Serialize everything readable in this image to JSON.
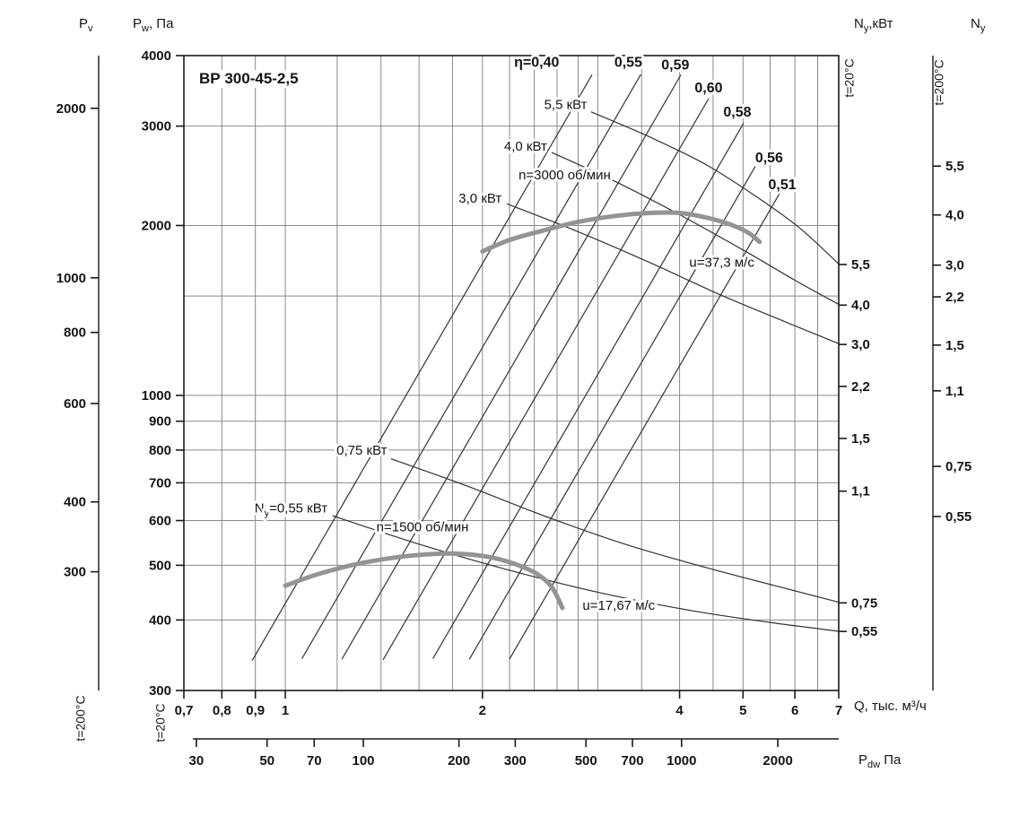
{
  "chart_data": {
    "type": "line",
    "title": "ВР 300-45-2,5",
    "axis_titles": {
      "pv": {
        "main": "P",
        "sub": "v",
        "rest": ""
      },
      "pw": {
        "main": "P",
        "sub": "w",
        "rest": ", Па"
      },
      "ny20": {
        "main": "N",
        "sub": "y",
        "rest": ",кВт"
      },
      "ny200": {
        "main": "N",
        "sub": "y",
        "rest": ""
      },
      "q": {
        "main": "Q",
        "sub": "",
        "rest": ", тыс. м³/ч"
      },
      "pdw": {
        "main": "P",
        "sub": "dw",
        "rest": " Па"
      }
    },
    "temps": {
      "left_outer": "t=200°C",
      "left_inner": "t=20°C",
      "right_inner": "t=20°C",
      "right_outer": "t=200°C"
    },
    "x_axis": {
      "scale": "log",
      "min": 0.7,
      "max": 7,
      "ticks": [
        {
          "v": 0.7,
          "l": "0,7"
        },
        {
          "v": 0.8,
          "l": "0,8"
        },
        {
          "v": 0.9,
          "l": "0,9"
        },
        {
          "v": 1,
          "l": "1"
        },
        {
          "v": 2,
          "l": "2"
        },
        {
          "v": 4,
          "l": "4"
        },
        {
          "v": 5,
          "l": "5"
        },
        {
          "v": 6,
          "l": "6"
        },
        {
          "v": 7,
          "l": "7"
        }
      ],
      "grid": [
        0.7,
        0.8,
        0.9,
        1,
        1.2,
        1.4,
        1.6,
        1.8,
        2,
        2.2,
        2.4,
        2.6,
        2.8,
        3,
        3.5,
        4,
        4.5,
        5,
        5.5,
        6,
        6.5,
        7
      ]
    },
    "y_axis": {
      "scale": "log",
      "min": 300,
      "max": 4000,
      "ticks": [
        {
          "v": 4000,
          "l": "4000"
        },
        {
          "v": 3000,
          "l": "3000"
        },
        {
          "v": 2000,
          "l": "2000"
        },
        {
          "v": 1000,
          "l": "1000"
        },
        {
          "v": 900,
          "l": "900"
        },
        {
          "v": 800,
          "l": "800"
        },
        {
          "v": 700,
          "l": "700"
        },
        {
          "v": 600,
          "l": "600"
        },
        {
          "v": 500,
          "l": "500"
        },
        {
          "v": 400,
          "l": "400"
        },
        {
          "v": 300,
          "l": "300"
        }
      ],
      "grid": [
        300,
        400,
        500,
        600,
        700,
        800,
        900,
        1000,
        1500,
        2000,
        3000,
        4000
      ]
    },
    "pv_axis": {
      "ticks": [
        {
          "l": "2000",
          "f": 0.083
        },
        {
          "l": "1000",
          "f": 0.35
        },
        {
          "l": "800",
          "f": 0.436
        },
        {
          "l": "600",
          "f": 0.548
        },
        {
          "l": "400",
          "f": 0.703
        },
        {
          "l": "300",
          "f": 0.813
        }
      ]
    },
    "pdw_axis": {
      "ticks": [
        {
          "l": "30",
          "f": 0.019
        },
        {
          "l": "50",
          "f": 0.127
        },
        {
          "l": "70",
          "f": 0.199
        },
        {
          "l": "100",
          "f": 0.274
        },
        {
          "l": "200",
          "f": 0.42
        },
        {
          "l": "300",
          "f": 0.506
        },
        {
          "l": "500",
          "f": 0.614
        },
        {
          "l": "700",
          "f": 0.685
        },
        {
          "l": "1000",
          "f": 0.76
        },
        {
          "l": "2000",
          "f": 0.907
        }
      ]
    },
    "ny20_axis": {
      "ticks": [
        {
          "l": "5,5",
          "f": 0.329
        },
        {
          "l": "4,0",
          "f": 0.393
        },
        {
          "l": "3,0",
          "f": 0.455
        },
        {
          "l": "2,2",
          "f": 0.521
        },
        {
          "l": "1,5",
          "f": 0.603
        },
        {
          "l": "1,1",
          "f": 0.686
        },
        {
          "l": "0,75",
          "f": 0.862
        },
        {
          "l": "0,55",
          "f": 0.907
        }
      ]
    },
    "ny200_axis": {
      "ticks": [
        {
          "l": "5,5",
          "f": 0.174
        },
        {
          "l": "4,0",
          "f": 0.251
        },
        {
          "l": "3,0",
          "f": 0.33
        },
        {
          "l": "2,2",
          "f": 0.38
        },
        {
          "l": "1,5",
          "f": 0.456
        },
        {
          "l": "1,1",
          "f": 0.528
        },
        {
          "l": "0,75",
          "f": 0.647
        },
        {
          "l": "0,55",
          "f": 0.726
        }
      ]
    },
    "fan_curves": [
      {
        "name": "n3000",
        "label": "n=3000 об/мин",
        "label_q": 2.67,
        "label_p": 2415,
        "u_label": "u=37,3 м/с",
        "u_q": 4.64,
        "u_p": 1690,
        "points": [
          [
            2.0,
            1800
          ],
          [
            2.2,
            1885
          ],
          [
            2.5,
            1965
          ],
          [
            2.8,
            2030
          ],
          [
            3.2,
            2080
          ],
          [
            3.6,
            2105
          ],
          [
            4.0,
            2105
          ],
          [
            4.4,
            2065
          ],
          [
            4.8,
            2005
          ],
          [
            5.1,
            1940
          ],
          [
            5.3,
            1870
          ]
        ]
      },
      {
        "name": "n1500",
        "label": "n=1500 об/мин",
        "label_q": 1.62,
        "label_p": 574,
        "u_label": "u=17,67 м/с",
        "u_q": 3.23,
        "u_p": 417,
        "points": [
          [
            1.0,
            460
          ],
          [
            1.12,
            482
          ],
          [
            1.28,
            502
          ],
          [
            1.45,
            515
          ],
          [
            1.65,
            523
          ],
          [
            1.85,
            524
          ],
          [
            2.05,
            517
          ],
          [
            2.25,
            502
          ],
          [
            2.42,
            483
          ],
          [
            2.55,
            458
          ],
          [
            2.65,
            420
          ]
        ]
      }
    ],
    "efficiency_lines": [
      {
        "label": "η=0,40",
        "k": 428,
        "q1": 0.89,
        "q2": 2.94,
        "lq": 2.42,
        "lp": 3820
      },
      {
        "label": "0,55",
        "k": 304,
        "q1": 1.06,
        "q2": 3.49,
        "lq": 3.34,
        "lp": 3820
      },
      {
        "label": "0,59",
        "k": 229,
        "q1": 1.22,
        "q2": 4.02,
        "lq": 3.94,
        "lp": 3780
      },
      {
        "label": "0,60",
        "k": 171,
        "q1": 1.41,
        "q2": 4.43,
        "lq": 4.43,
        "lp": 3440
      },
      {
        "label": "0,58",
        "k": 121,
        "q1": 1.68,
        "q2": 5.01,
        "lq": 4.9,
        "lp": 3120
      },
      {
        "label": "0,56",
        "k": 93.4,
        "q1": 1.91,
        "q2": 5.22,
        "lq": 5.48,
        "lp": 2590
      },
      {
        "label": "0,51",
        "k": 70.5,
        "q1": 2.2,
        "q2": 5.69,
        "lq": 5.74,
        "lp": 2320
      }
    ],
    "power_curves": [
      {
        "label_parts": [
          {
            "t": "5,5 кВт"
          }
        ],
        "anchor": "end",
        "label_q": 2.89,
        "label_p": 3220,
        "points": [
          [
            2.93,
            3180
          ],
          [
            3.6,
            2870
          ],
          [
            4.4,
            2560
          ],
          [
            5.3,
            2230
          ],
          [
            6.1,
            1980
          ],
          [
            7,
            1710
          ]
        ]
      },
      {
        "label_parts": [
          {
            "t": "4,0 кВт"
          }
        ],
        "anchor": "end",
        "label_q": 2.51,
        "label_p": 2715,
        "points": [
          [
            2.55,
            2695
          ],
          [
            3.2,
            2390
          ],
          [
            4.0,
            2090
          ],
          [
            5.0,
            1810
          ],
          [
            6.0,
            1600
          ],
          [
            7,
            1450
          ]
        ]
      },
      {
        "label_parts": [
          {
            "t": "3,0 кВт"
          }
        ],
        "anchor": "end",
        "label_q": 2.14,
        "label_p": 2195,
        "points": [
          [
            2.18,
            2185
          ],
          [
            2.8,
            1950
          ],
          [
            3.6,
            1720
          ],
          [
            4.6,
            1510
          ],
          [
            5.8,
            1350
          ],
          [
            7,
            1235
          ]
        ]
      },
      {
        "label_parts": [
          {
            "t": "0,75 кВт"
          }
        ],
        "anchor": "end",
        "label_q": 1.43,
        "label_p": 785,
        "points": [
          [
            1.45,
            772
          ],
          [
            1.9,
            690
          ],
          [
            2.5,
            610
          ],
          [
            3.3,
            545
          ],
          [
            4.4,
            495
          ],
          [
            5.6,
            460
          ],
          [
            7,
            430
          ]
        ]
      },
      {
        "label_parts": [
          {
            "t": "N"
          },
          {
            "t": "y",
            "sub": true
          },
          {
            "t": "=0,55 кВт"
          }
        ],
        "anchor": "end",
        "label_q": 1.16,
        "label_p": 620,
        "points": [
          [
            1.18,
            612
          ],
          [
            1.6,
            545
          ],
          [
            2.2,
            490
          ],
          [
            3.0,
            448
          ],
          [
            4.2,
            415
          ],
          [
            5.5,
            396
          ],
          [
            7,
            382
          ]
        ]
      }
    ]
  }
}
